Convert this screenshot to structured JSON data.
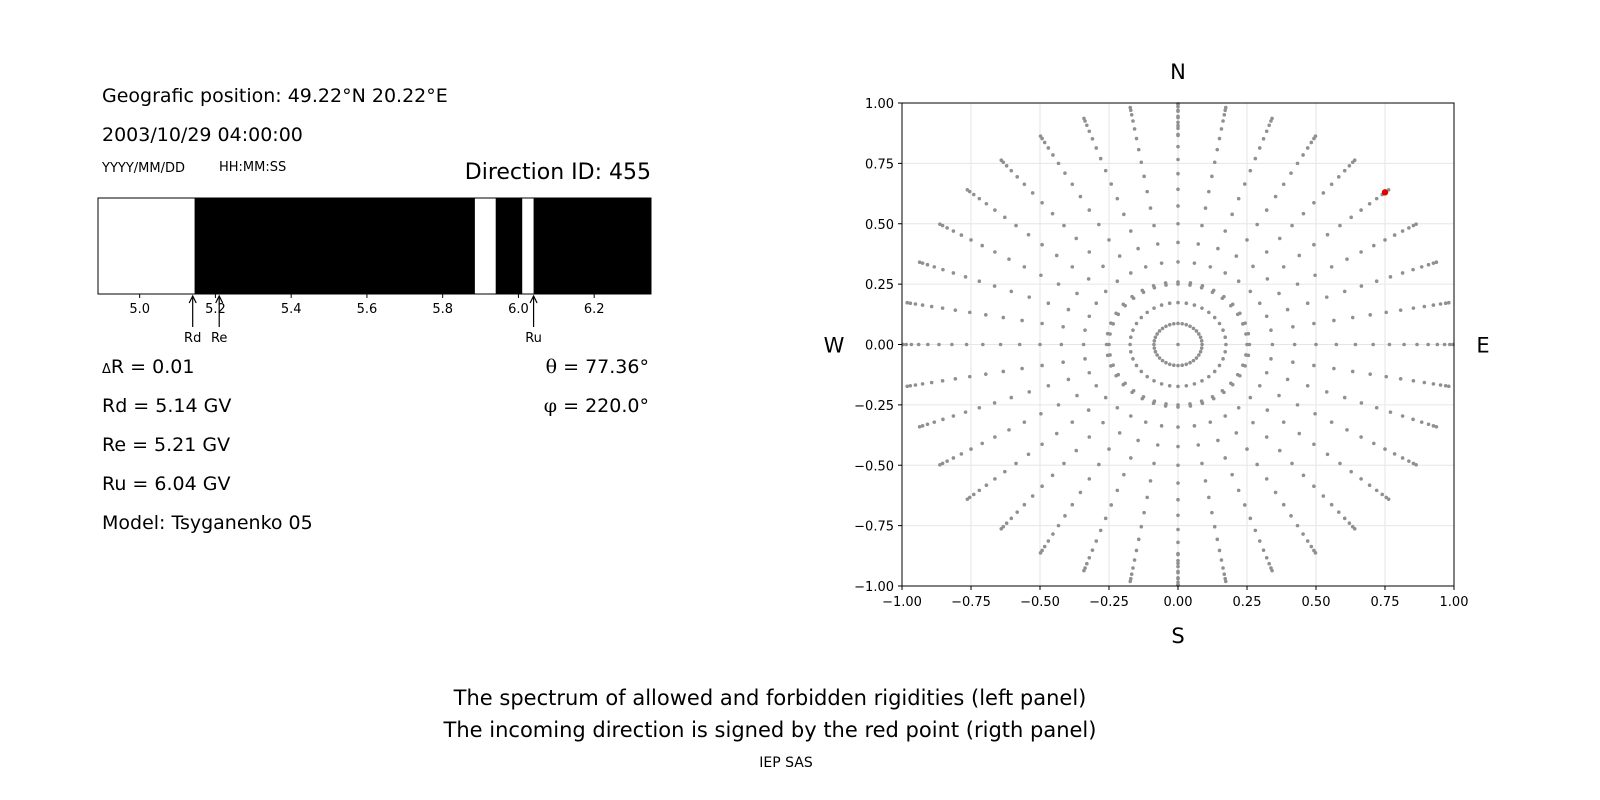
{
  "info": {
    "position": "Geografic position: 49.22°N 20.22°E",
    "datetime": "2003/10/29 04:00:00",
    "date_format": "YYYY/MM/DD",
    "time_format": "HH:MM:SS",
    "direction_id": "Direction ID: 455"
  },
  "params": {
    "delta_symbol": "Δ",
    "delta_r": "R = 0.01",
    "rd": "Rd = 5.14 GV",
    "re": "Re = 5.21 GV",
    "ru": "Ru = 6.04 GV",
    "model": "Model: Tsyganenko 05",
    "theta_symbol": "θ",
    "theta": " = 77.36°",
    "phi_symbol": "φ",
    "phi": " = 220.0°"
  },
  "compass": {
    "n": "N",
    "s": "S",
    "w": "W",
    "e": "E"
  },
  "caption": {
    "line1": "The spectrum of allowed and forbidden rigidities (left panel)",
    "line2": "The incoming direction is signed by the red point (rigth panel)",
    "footer": "IEP SAS"
  },
  "colors": {
    "forbidden": "#000000",
    "allowed": "#ffffff",
    "grid_point": "#909090",
    "selected_point": "#e00000"
  },
  "chart_data": [
    {
      "type": "bar",
      "title": "",
      "xlabel": "",
      "ylabel": "",
      "xlim": [
        4.89,
        6.35
      ],
      "x_ticks": [
        5.0,
        5.2,
        5.4,
        5.6,
        5.8,
        6.0,
        6.2
      ],
      "forbidden_bands": [
        [
          5.145,
          5.885
        ],
        [
          5.94,
          6.01
        ],
        [
          6.04,
          6.35
        ]
      ],
      "allowed_bands": [
        [
          4.89,
          5.145
        ],
        [
          5.885,
          5.94
        ],
        [
          6.01,
          6.04
        ]
      ],
      "markers": [
        {
          "label": "Rd",
          "value": 5.14
        },
        {
          "label": "Re",
          "value": 5.21
        },
        {
          "label": "Ru",
          "value": 6.04
        }
      ]
    },
    {
      "type": "scatter",
      "title": "",
      "xlabel": "",
      "ylabel": "",
      "xlim": [
        -1.0,
        1.0
      ],
      "ylim": [
        -1.0,
        1.0
      ],
      "x_ticks": [
        -1.0,
        -0.75,
        -0.5,
        -0.25,
        0.0,
        0.25,
        0.5,
        0.75,
        1.0
      ],
      "y_ticks": [
        -1.0,
        -0.75,
        -0.5,
        -0.25,
        0.0,
        0.25,
        0.5,
        0.75,
        1.0
      ],
      "grid": true,
      "series": [
        {
          "points": "direction grid: 40 azimuths every 10 degrees at radii sin(zenith) for zenith = 0..85 degrees in 5 degree steps, plus an inner ring of 36 points at radius 0.25"
        },
        {
          "points": [
            [
              0.75,
              0.63
            ]
          ]
        }
      ]
    }
  ]
}
